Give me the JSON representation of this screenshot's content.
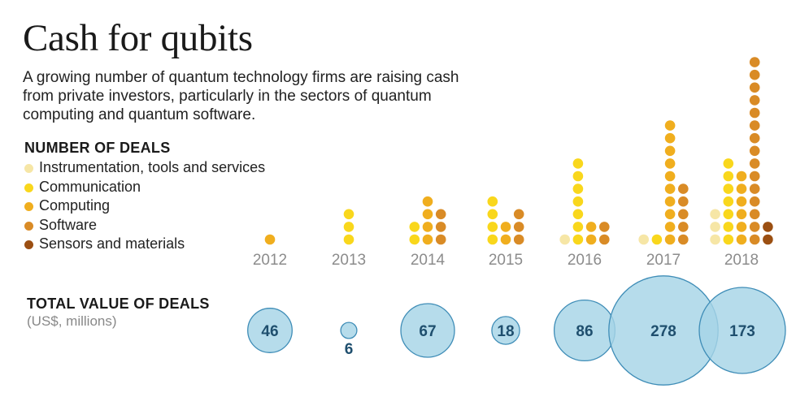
{
  "title": "Cash for qubits",
  "subtitle": "A growing number of quantum technology firms are raising cash from private investors, particularly in the sectors of quantum computing and quantum software.",
  "deals_heading": "NUMBER OF DEALS",
  "value_heading": "TOTAL VALUE OF DEALS",
  "value_unit": "(US$, millions)",
  "chart_data": {
    "type": "dot-matrix-and-bubble",
    "years": [
      "2012",
      "2013",
      "2014",
      "2015",
      "2016",
      "2017",
      "2018"
    ],
    "legend": [
      {
        "name": "Instrumentation, tools and services",
        "color": "#f6e6a6"
      },
      {
        "name": "Communication",
        "color": "#f9d71c"
      },
      {
        "name": "Computing",
        "color": "#f0ae1e"
      },
      {
        "name": "Software",
        "color": "#d98b26"
      },
      {
        "name": "Sensors and materials",
        "color": "#9b4f12"
      }
    ],
    "number_of_deals": [
      {
        "year": "2012",
        "counts": [
          0,
          0,
          1,
          0,
          0
        ]
      },
      {
        "year": "2013",
        "counts": [
          0,
          3,
          0,
          0,
          0
        ]
      },
      {
        "year": "2014",
        "counts": [
          0,
          2,
          4,
          3,
          0
        ]
      },
      {
        "year": "2015",
        "counts": [
          0,
          4,
          2,
          3,
          0
        ]
      },
      {
        "year": "2016",
        "counts": [
          1,
          7,
          2,
          2,
          0
        ]
      },
      {
        "year": "2017",
        "counts": [
          1,
          1,
          10,
          5,
          0
        ]
      },
      {
        "year": "2018",
        "counts": [
          3,
          7,
          6,
          15,
          2
        ]
      }
    ],
    "total_value_usd_millions": [
      {
        "year": "2012",
        "value": 46
      },
      {
        "year": "2013",
        "value": 6
      },
      {
        "year": "2014",
        "value": 67
      },
      {
        "year": "2015",
        "value": 18
      },
      {
        "year": "2016",
        "value": 86
      },
      {
        "year": "2017",
        "value": 278
      },
      {
        "year": "2018",
        "value": 173
      }
    ],
    "bubble_color": "#a6d4e6",
    "bubble_stroke": "#3f8db7"
  }
}
